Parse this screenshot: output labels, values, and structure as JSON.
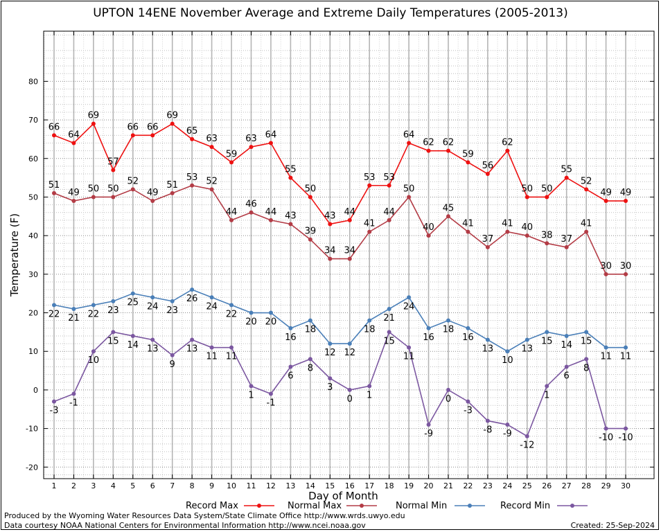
{
  "title": "UPTON 14ENE November Average and Extreme Daily Temperatures (2005-2013)",
  "footer": {
    "left_line1": "Produced by the Wyoming Water Resources Data System/State Climate Office http://www.wrds.uwyo.edu",
    "left_line2": "Data courtesy NOAA National Centers for Environmental Information http://www.ncei.noaa.gov",
    "created": "Created:  25-Sep-2024"
  },
  "chart_data": {
    "type": "line",
    "title": "UPTON 14ENE November Average and Extreme Daily Temperatures (2005-2013)",
    "xlabel": "Day of Month",
    "ylabel": "Temperature (F)",
    "ylim": [
      -23,
      93
    ],
    "yticks": [
      -20,
      -10,
      0,
      10,
      20,
      30,
      40,
      50,
      60,
      70,
      80
    ],
    "x": [
      1,
      2,
      3,
      4,
      5,
      6,
      7,
      8,
      9,
      10,
      11,
      12,
      13,
      14,
      15,
      16,
      17,
      18,
      19,
      20,
      21,
      22,
      23,
      24,
      25,
      26,
      27,
      28,
      29,
      30
    ],
    "grid": true,
    "legend_position": "bottom",
    "series": [
      {
        "name": "Record Max",
        "color": "#ee1111",
        "label_pos": "above",
        "values": [
          66,
          64,
          69,
          57,
          66,
          66,
          69,
          65,
          63,
          59,
          63,
          64,
          55,
          50,
          43,
          44,
          53,
          53,
          64,
          62,
          62,
          59,
          56,
          62,
          50,
          50,
          55,
          52,
          49,
          49
        ]
      },
      {
        "name": "Normal Max",
        "color": "#b33c46",
        "label_pos": "above",
        "values": [
          51,
          49,
          50,
          50,
          52,
          49,
          51,
          53,
          52,
          44,
          46,
          44,
          43,
          39,
          34,
          34,
          41,
          44,
          50,
          40,
          45,
          41,
          37,
          41,
          40,
          38,
          37,
          41,
          30,
          30
        ]
      },
      {
        "name": "Normal Min",
        "color": "#4a7fb8",
        "label_pos": "below",
        "values": [
          22,
          21,
          22,
          23,
          25,
          24,
          23,
          26,
          24,
          22,
          20,
          20,
          16,
          18,
          12,
          12,
          18,
          21,
          24,
          16,
          18,
          16,
          13,
          10,
          13,
          15,
          14,
          15,
          11,
          11
        ]
      },
      {
        "name": "Record Min",
        "color": "#7b57a0",
        "label_pos": "below",
        "values": [
          -3,
          -1,
          10,
          15,
          14,
          13,
          9,
          13,
          11,
          11,
          1,
          -1,
          6,
          8,
          3,
          0,
          1,
          15,
          11,
          -9,
          0,
          -3,
          -8,
          -9,
          -12,
          1,
          6,
          8,
          -10,
          -10
        ]
      }
    ]
  }
}
